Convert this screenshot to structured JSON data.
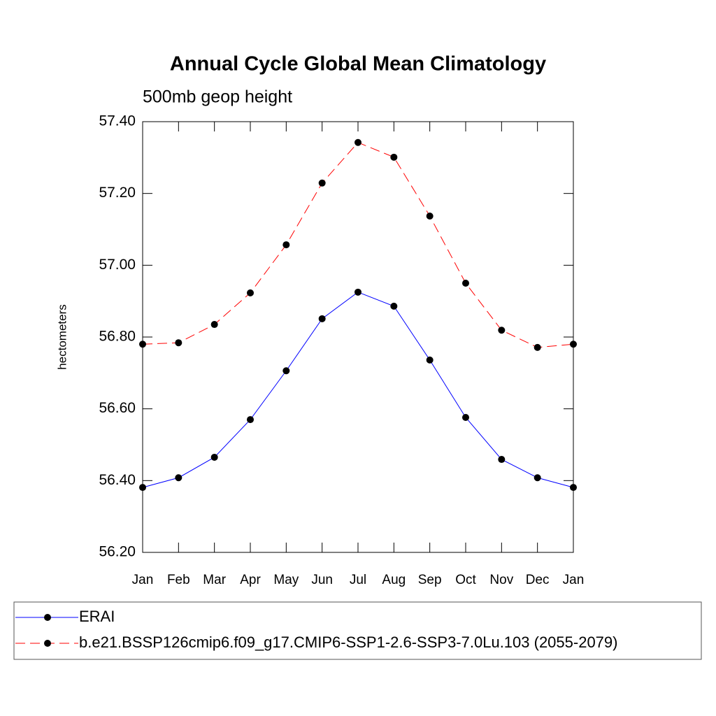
{
  "chart_data": {
    "type": "line",
    "title": "Annual Cycle Global Mean Climatology",
    "subtitle": "500mb geop height",
    "y_label": "hectometers",
    "categories": [
      "Jan",
      "Feb",
      "Mar",
      "Apr",
      "May",
      "Jun",
      "Jul",
      "Aug",
      "Sep",
      "Oct",
      "Nov",
      "Dec",
      "Jan"
    ],
    "ylim": [
      56.2,
      57.4
    ],
    "yticks": [
      {
        "value": 56.2,
        "label": "56.20"
      },
      {
        "value": 56.4,
        "label": "56.40"
      },
      {
        "value": 56.6,
        "label": "56.60"
      },
      {
        "value": 56.8,
        "label": "56.80"
      },
      {
        "value": 57.0,
        "label": "57.00"
      },
      {
        "value": 57.2,
        "label": "57.20"
      },
      {
        "value": 57.4,
        "label": "57.40"
      }
    ],
    "series": [
      {
        "name": "ERAI",
        "color": "#0000ff",
        "dashed": false,
        "values": [
          56.381,
          56.408,
          56.465,
          56.57,
          56.706,
          56.851,
          56.925,
          56.886,
          56.736,
          56.576,
          56.459,
          56.408,
          56.381
        ]
      },
      {
        "name": "b.e21.BSSP126cmip6.f09_g17.CMIP6-SSP1-2.6-SSP3-7.0Lu.103 (2055-2079)",
        "color": "#ff0000",
        "dashed": true,
        "values": [
          56.78,
          56.784,
          56.835,
          56.923,
          57.057,
          57.229,
          57.342,
          57.301,
          57.137,
          56.95,
          56.819,
          56.771,
          56.78
        ]
      }
    ]
  }
}
